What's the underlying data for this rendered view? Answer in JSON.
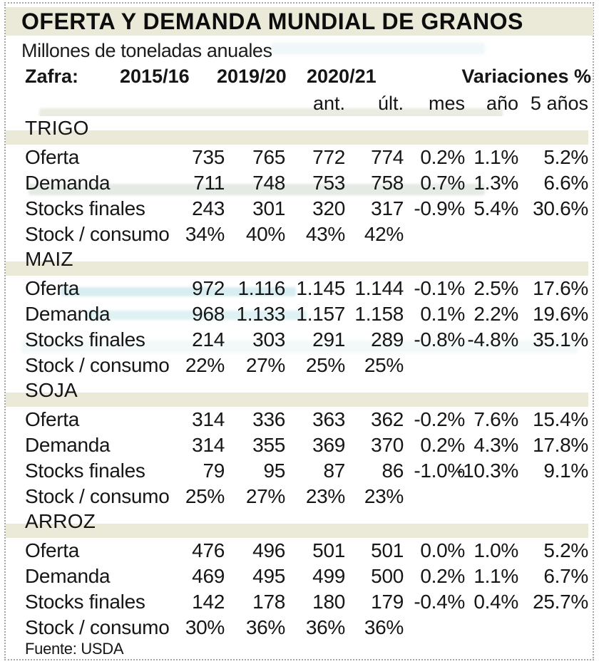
{
  "chart_data": {
    "type": "table",
    "title": "OFERTA Y DEMANDA MUNDIAL DE GRANOS",
    "units": "Millones de toneladas anuales",
    "source": "Fuente: USDA",
    "columns": [
      "Zafra",
      "2015/16",
      "2019/20",
      "2020/21 ant.",
      "2020/21 últ.",
      "Variación mes %",
      "Variación año %",
      "Variación 5 años %"
    ],
    "sections": [
      {
        "name": "TRIGO",
        "rows": [
          {
            "label": "Oferta",
            "values": [
              "735",
              "765",
              "772",
              "774",
              "0.2%",
              "1.1%",
              "5.2%"
            ]
          },
          {
            "label": "Demanda",
            "values": [
              "711",
              "748",
              "753",
              "758",
              "0.7%",
              "1.3%",
              "6.6%"
            ]
          },
          {
            "label": "Stocks finales",
            "values": [
              "243",
              "301",
              "320",
              "317",
              "-0.9%",
              "5.4%",
              "30.6%"
            ]
          },
          {
            "label": "Stock / consumo",
            "values": [
              "34%",
              "40%",
              "43%",
              "42%",
              "",
              "",
              ""
            ]
          }
        ]
      },
      {
        "name": "MAIZ",
        "rows": [
          {
            "label": "Oferta",
            "values": [
              "972",
              "1.116",
              "1.145",
              "1.144",
              "-0.1%",
              "2.5%",
              "17.6%"
            ]
          },
          {
            "label": "Demanda",
            "values": [
              "968",
              "1.133",
              "1.157",
              "1.158",
              "0.1%",
              "2.2%",
              "19.6%"
            ]
          },
          {
            "label": "Stocks finales",
            "values": [
              "214",
              "303",
              "291",
              "289",
              "-0.8%",
              "-4.8%",
              "35.1%"
            ]
          },
          {
            "label": "Stock / consumo",
            "values": [
              "22%",
              "27%",
              "25%",
              "25%",
              "",
              "",
              ""
            ]
          }
        ]
      },
      {
        "name": "SOJA",
        "rows": [
          {
            "label": "Oferta",
            "values": [
              "314",
              "336",
              "363",
              "362",
              "-0.2%",
              "7.6%",
              "15.4%"
            ]
          },
          {
            "label": "Demanda",
            "values": [
              "314",
              "355",
              "369",
              "370",
              "0.2%",
              "4.3%",
              "17.8%"
            ]
          },
          {
            "label": "Stocks finales",
            "values": [
              "79",
              "95",
              "87",
              "86",
              "-1.0%",
              "-10.3%",
              "9.1%"
            ]
          },
          {
            "label": "Stock / consumo",
            "values": [
              "25%",
              "27%",
              "23%",
              "23%",
              "",
              "",
              ""
            ]
          }
        ]
      },
      {
        "name": "ARROZ",
        "rows": [
          {
            "label": "Oferta",
            "values": [
              "476",
              "496",
              "501",
              "501",
              "0.0%",
              "1.0%",
              "5.2%"
            ]
          },
          {
            "label": "Demanda",
            "values": [
              "469",
              "495",
              "499",
              "500",
              "0.2%",
              "1.1%",
              "6.7%"
            ]
          },
          {
            "label": "Stocks finales",
            "values": [
              "142",
              "178",
              "180",
              "179",
              "-0.4%",
              "0.4%",
              "25.7%"
            ]
          },
          {
            "label": "Stock / consumo",
            "values": [
              "30%",
              "36%",
              "36%",
              "36%",
              "",
              "",
              ""
            ]
          }
        ]
      }
    ]
  },
  "header": {
    "zafra": "Zafra:",
    "y1": "2015/16",
    "y2": "2019/20",
    "y3": "2020/21",
    "variaciones": "Variaciones %",
    "sub": {
      "ant": "ant.",
      "ult": "últ.",
      "mes": "mes",
      "anio": "año",
      "five": "5 años"
    }
  },
  "colors": {
    "band": "#ebead9",
    "text": "#161616",
    "border_dots": "#a3a8a4"
  }
}
